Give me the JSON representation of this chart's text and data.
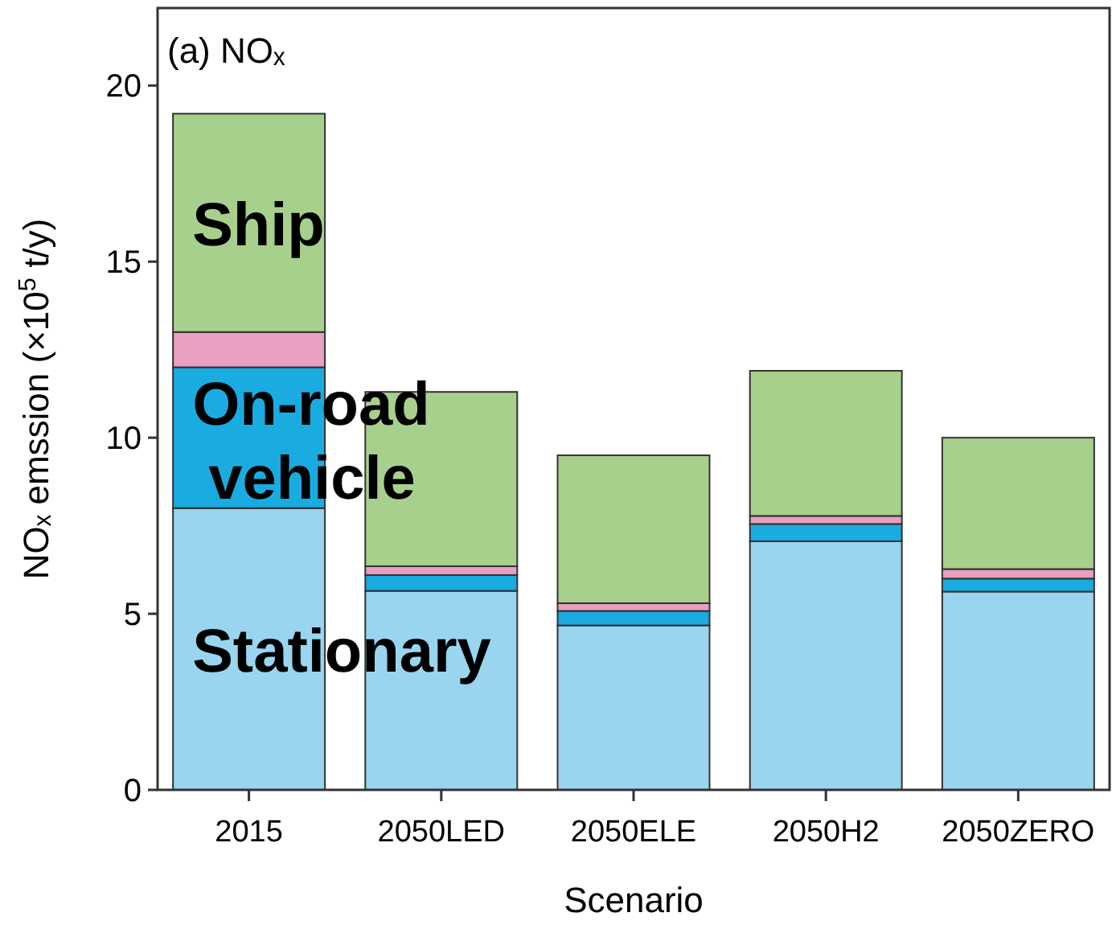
{
  "chart_data": {
    "type": "bar",
    "stacked": true,
    "title": "(a) NOₓ",
    "xlabel": "Scenario",
    "ylabel": "NOₓ emssion (×10$^{5}$ t/y)",
    "categories": [
      "2015",
      "2050LED",
      "2050ELE",
      "2050H2",
      "2050ZERO"
    ],
    "series": [
      {
        "name": "Stationary",
        "color": "#99d5ee",
        "values": [
          8.0,
          5.65,
          4.67,
          7.06,
          5.63
        ]
      },
      {
        "name": "On-road\nvehicle",
        "color": "#1aabe0",
        "values": [
          4.0,
          0.45,
          0.41,
          0.49,
          0.37
        ]
      },
      {
        "color": "#e8a0c0",
        "values": [
          1.0,
          0.25,
          0.22,
          0.23,
          0.27
        ]
      },
      {
        "name": "Ship",
        "color": "#a8d08d",
        "values": [
          6.2,
          4.95,
          4.2,
          4.12,
          3.73
        ]
      }
    ],
    "ylim": [
      0,
      22.2
    ],
    "yticks": [
      0,
      5,
      10,
      15,
      20
    ],
    "grid": false
  }
}
